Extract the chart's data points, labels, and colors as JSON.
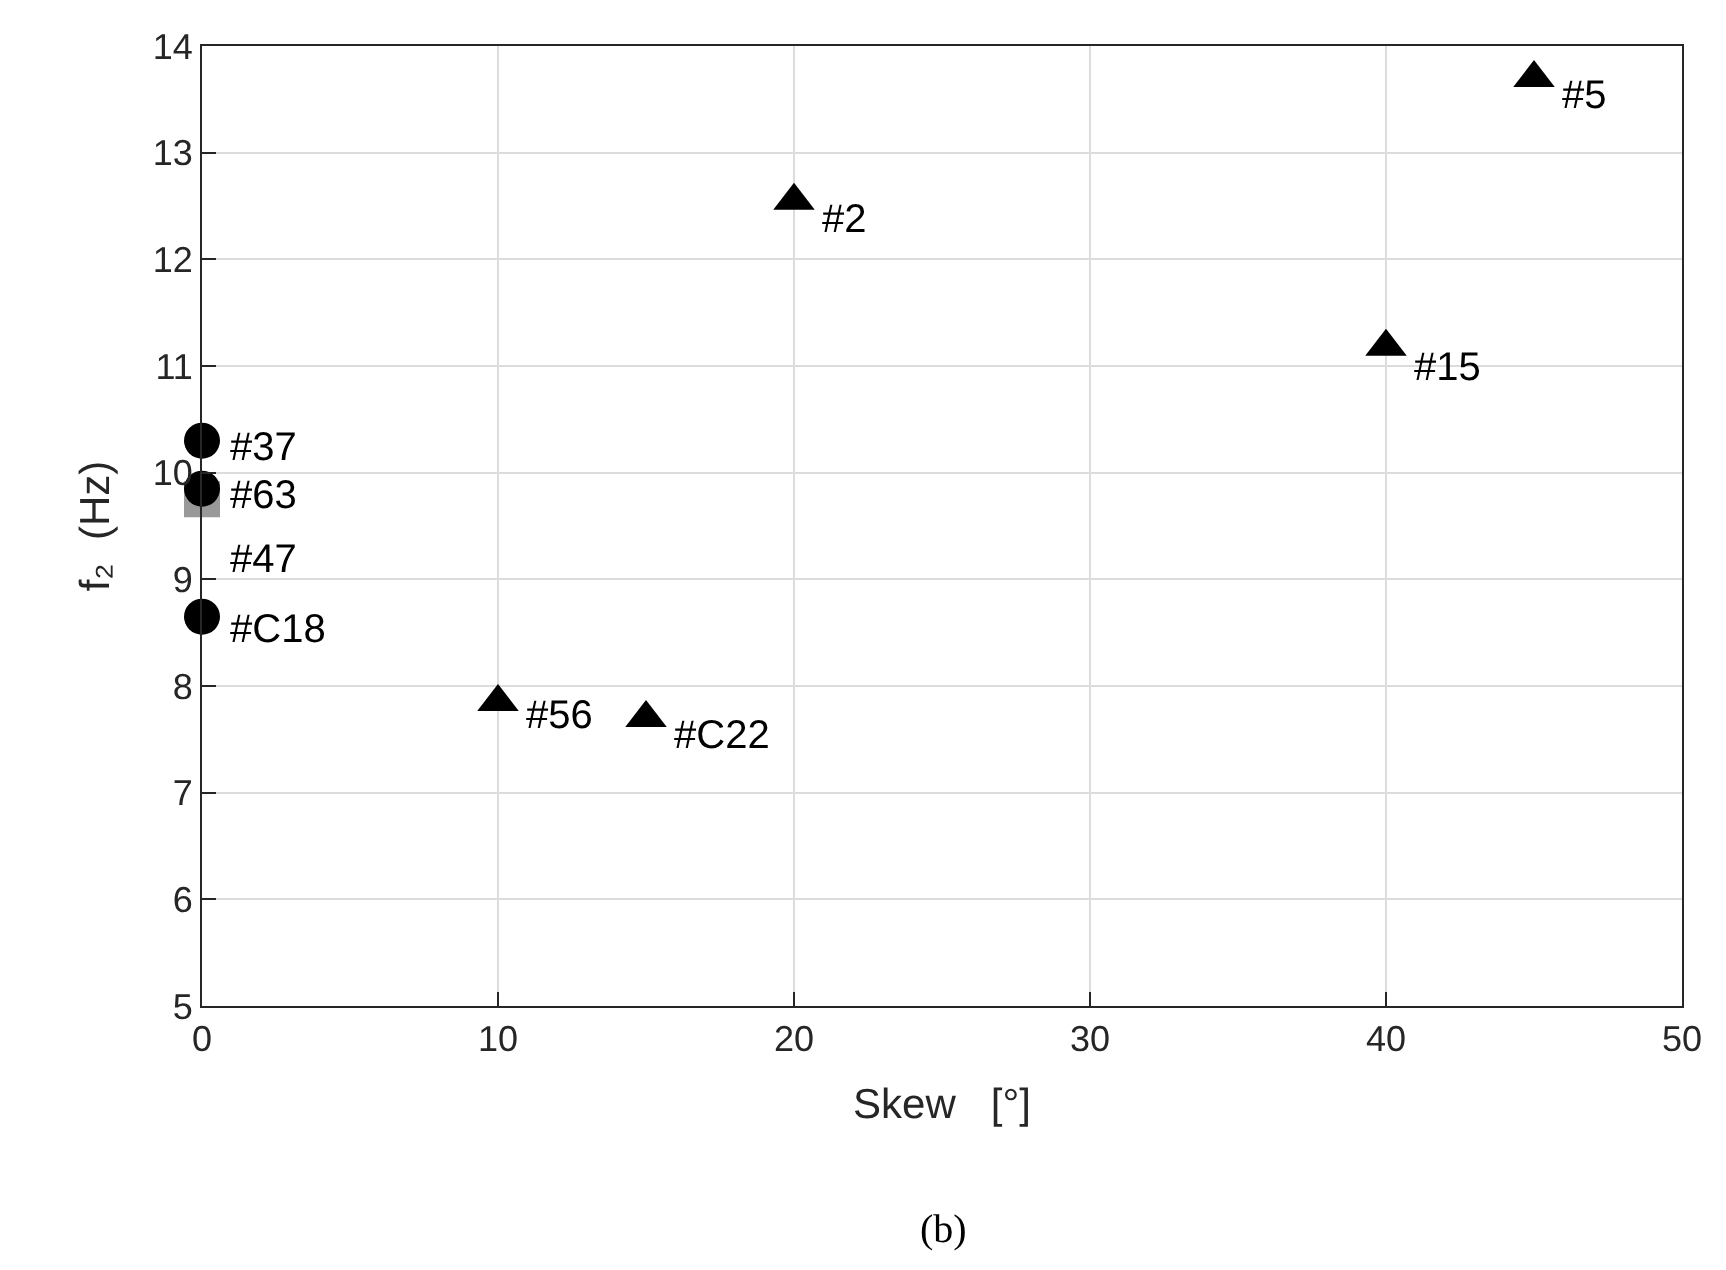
{
  "chart_data": {
    "type": "scatter",
    "xlabel": "Skew   [°]",
    "ylabel": "f₂  (Hz)",
    "xlim": [
      0,
      50
    ],
    "xticks": [
      0,
      10,
      20,
      30,
      40,
      50
    ],
    "ylim": [
      5,
      14
    ],
    "yticks": [
      5,
      6,
      7,
      8,
      9,
      10,
      11,
      12,
      13,
      14
    ],
    "grid": true,
    "series": [
      {
        "marker": "square",
        "color": "#999999",
        "x": [
          0
        ],
        "values": [
          9.75
        ]
      },
      {
        "marker": "circle",
        "color": "#000000",
        "x": [
          0,
          0,
          0
        ],
        "values": [
          10.3,
          9.85,
          8.65
        ]
      },
      {
        "marker": "triangle",
        "color": "#000000",
        "x": [
          10,
          15,
          20,
          40,
          45
        ],
        "values": [
          7.85,
          7.7,
          12.55,
          11.18,
          13.7
        ]
      }
    ],
    "annotations": [
      {
        "text": "#37",
        "x": 0,
        "y": 10.3
      },
      {
        "text": "#63",
        "x": 0,
        "y": 9.85
      },
      {
        "text": "#47",
        "x": 0,
        "y": 9.75
      },
      {
        "text": "#C18",
        "x": 0,
        "y": 8.6
      },
      {
        "text": "#56",
        "x": 10,
        "y": 7.8
      },
      {
        "text": "#C22",
        "x": 15,
        "y": 7.6
      },
      {
        "text": "#2",
        "x": 20,
        "y": 12.45
      },
      {
        "text": "#15",
        "x": 40,
        "y": 11.05
      },
      {
        "text": "#5",
        "x": 45,
        "y": 13.6
      },
      "(b)"
    ]
  }
}
